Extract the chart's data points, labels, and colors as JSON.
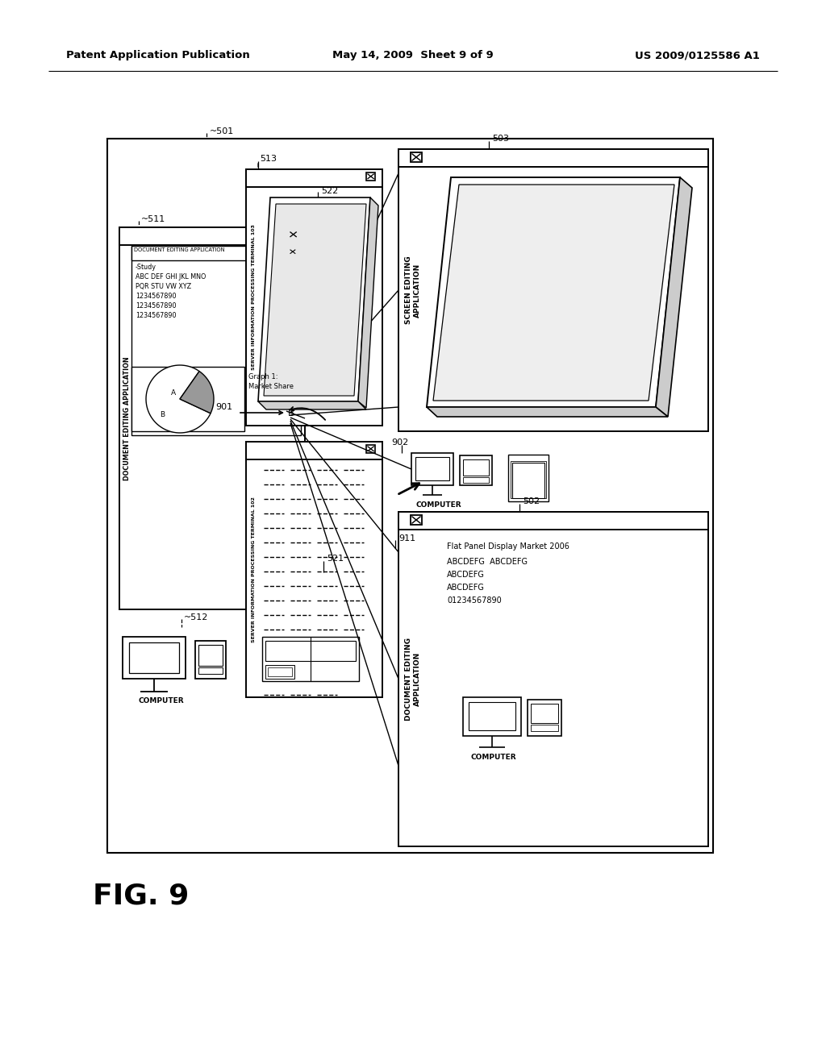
{
  "bg": "#ffffff",
  "header_left": "Patent Application Publication",
  "header_mid": "May 14, 2009  Sheet 9 of 9",
  "header_right": "US 2009/0125586 A1",
  "fig_label": "FIG. 9"
}
